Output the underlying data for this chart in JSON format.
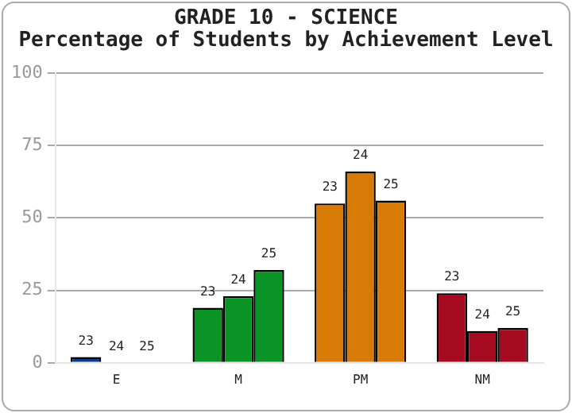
{
  "chart_data": {
    "type": "bar",
    "title": "GRADE 10 - SCIENCE",
    "subtitle": "Percentage of Students by Achievement Level",
    "categories": [
      "E",
      "M",
      "PM",
      "NM"
    ],
    "series": [
      {
        "name": "23",
        "colors": [
          "#0b3d8c",
          "#0a9426",
          "#d77a06",
          "#a50a20"
        ],
        "values": [
          2,
          19,
          55,
          24
        ]
      },
      {
        "name": "24",
        "colors": [
          "#0b3d8c",
          "#0a9426",
          "#d77a06",
          "#a50a20"
        ],
        "values": [
          0,
          23,
          66,
          11
        ]
      },
      {
        "name": "25",
        "colors": [
          "#0b3d8c",
          "#0a9426",
          "#d77a06",
          "#a50a20"
        ],
        "values": [
          0,
          32,
          56,
          12
        ]
      }
    ],
    "ylim": [
      0,
      100
    ],
    "yticks": [
      0,
      25,
      50,
      75,
      100
    ],
    "grid": "y",
    "legend": false
  }
}
